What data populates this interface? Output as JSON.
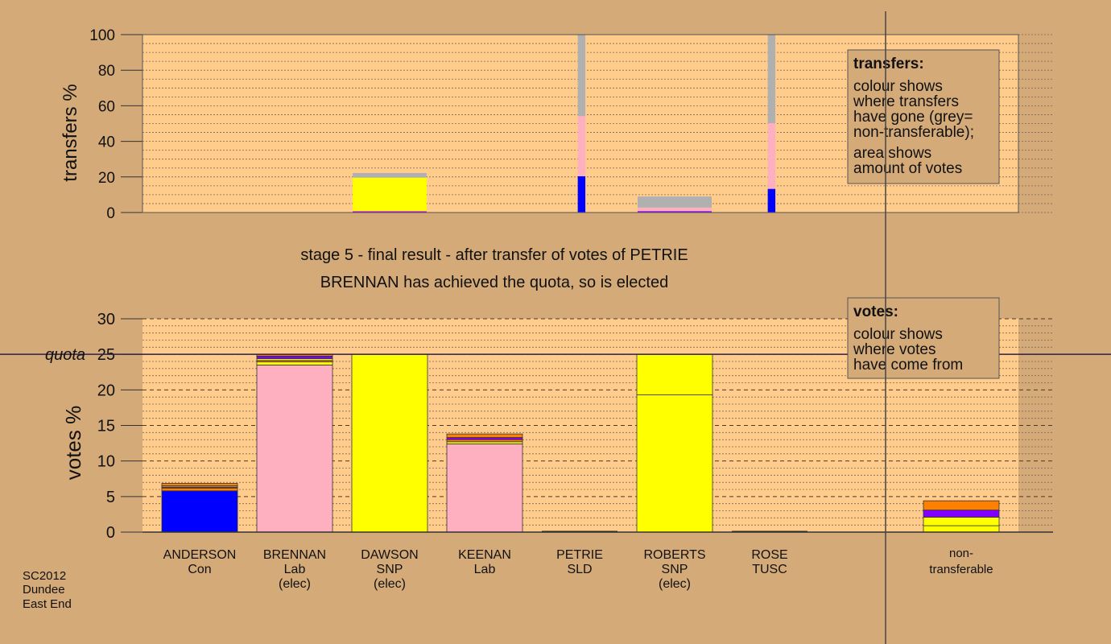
{
  "chart_data": [
    {
      "type": "bar",
      "stacked": true,
      "ylabel": "transfers %",
      "ylim": [
        0,
        100
      ],
      "yticks": [
        0,
        20,
        40,
        60,
        80,
        100
      ],
      "legend": {
        "title": "transfers:",
        "lines1": [
          "colour shows",
          "where transfers",
          "have gone (grey=",
          "non-transferable);"
        ],
        "lines2": [
          "area shows",
          "amount of votes"
        ]
      },
      "bars": [
        {
          "x0": 2.5,
          "x1": 3.5,
          "segments": [
            {
              "color": "#0000ff",
              "value": 0.4
            },
            {
              "color": "#ff00ff",
              "value": 0.4
            },
            {
              "color": "#ffff00",
              "value": 18.8
            },
            {
              "color": "#b0b0b0",
              "value": 2.6
            }
          ]
        },
        {
          "x0": 4.98,
          "x1": 5.06,
          "segments": [
            {
              "color": "#0000ff",
              "value": 20.4
            },
            {
              "color": "#ffb0c0",
              "value": 33.8
            },
            {
              "color": "#b0b0b0",
              "value": 45.8
            }
          ]
        },
        {
          "x0": 5.5,
          "x1": 6.5,
          "segments": [
            {
              "color": "#8000ff",
              "value": 0.8
            },
            {
              "color": "#ffb0c0",
              "value": 2.0
            },
            {
              "color": "#b0b0b0",
              "value": 6.2
            }
          ]
        },
        {
          "x0": 6.98,
          "x1": 7.06,
          "segments": [
            {
              "color": "#0000ff",
              "value": 13.3
            },
            {
              "color": "#ffb0c0",
              "value": 36.9
            },
            {
              "color": "#b0b0b0",
              "value": 49.8
            }
          ]
        }
      ]
    },
    {
      "type": "bar",
      "stacked": true,
      "ylabel": "votes %",
      "ylim": [
        0,
        30
      ],
      "yticks": [
        0,
        5,
        10,
        15,
        20,
        25,
        30
      ],
      "quota": 25,
      "quota_label": "quota",
      "legend": {
        "title": "votes:",
        "lines1": [
          "colour shows",
          "where votes",
          "have come from"
        ]
      },
      "candidates": [
        {
          "name": "ANDERSON",
          "party": "Con",
          "status": "",
          "segments": [
            {
              "color": "#0000ff",
              "value": 5.8
            },
            {
              "color": "#ff8000",
              "value": 0.4
            },
            {
              "color": "#8000ff",
              "value": 0.15
            },
            {
              "color": "#ffff00",
              "value": 0.15
            },
            {
              "color": "#ff8000",
              "value": 0.35
            }
          ]
        },
        {
          "name": "BRENNAN",
          "party": "Lab",
          "status": "(elec)",
          "segments": [
            {
              "color": "#ffb0c0",
              "value": 23.5
            },
            {
              "color": "#ffff00",
              "value": 0.45
            },
            {
              "color": "#ff8000",
              "value": 0.2
            },
            {
              "color": "#ffff00",
              "value": 0.25
            },
            {
              "color": "#8000ff",
              "value": 0.35
            },
            {
              "color": "#ff8000",
              "value": 0.25
            }
          ]
        },
        {
          "name": "DAWSON",
          "party": "SNP",
          "status": "(elec)",
          "segments": [
            {
              "color": "#ffff00",
              "value": 25.0
            }
          ]
        },
        {
          "name": "KEENAN",
          "party": "Lab",
          "status": "",
          "segments": [
            {
              "color": "#ffb0c0",
              "value": 12.4
            },
            {
              "color": "#ffff00",
              "value": 0.3
            },
            {
              "color": "#ff8000",
              "value": 0.3
            },
            {
              "color": "#8000ff",
              "value": 0.3
            },
            {
              "color": "#ff8000",
              "value": 0.5
            }
          ]
        },
        {
          "name": "PETRIE",
          "party": "SLD",
          "status": "",
          "segments": []
        },
        {
          "name": "ROBERTS",
          "party": "SNP",
          "status": "(elec)",
          "segments": [
            {
              "color": "#ffff00",
              "value": 19.3
            },
            {
              "color": "#ffff00",
              "value": 5.7
            }
          ]
        },
        {
          "name": "ROSE",
          "party": "TUSC",
          "status": "",
          "segments": []
        },
        {
          "name": "non-transferable",
          "party": "",
          "status": "",
          "nontransferable": true,
          "segments": [
            {
              "color": "#ffff00",
              "value": 0.9
            },
            {
              "color": "#ffff00",
              "value": 1.2
            },
            {
              "color": "#8000ff",
              "value": 1.0
            },
            {
              "color": "#ff8000",
              "value": 1.3
            }
          ]
        }
      ]
    }
  ],
  "stage_text": "stage 5 - final result - after transfer of votes of PETRIE",
  "result_text": "BRENNAN has achieved the quota, so is elected",
  "footer": [
    "SC2012",
    "Dundee",
    "East End"
  ],
  "colors": {
    "background": "#d4aa78",
    "plot_background": "#ffcc8c",
    "grey": "#b0b0b0",
    "Con": "#0000ff",
    "Lab": "#ffb0c0",
    "SNP": "#ffff00",
    "SLD": "#ff8000",
    "TUSC": "#8000ff"
  }
}
